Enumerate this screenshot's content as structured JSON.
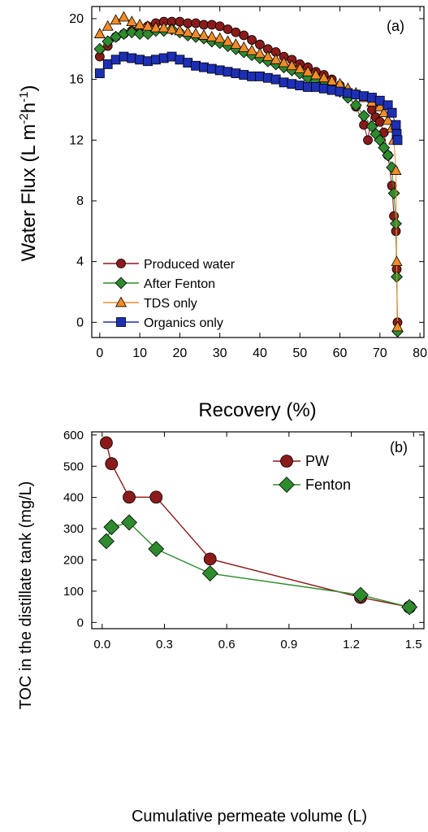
{
  "chart_data": [
    {
      "type": "scatter",
      "panel_label": "(a)",
      "xlabel": "Recovery (%)",
      "ylabel": "Water Flux (L m-2h-1)",
      "xlim": [
        -2,
        81
      ],
      "ylim": [
        -1,
        20.8
      ],
      "xticks": [
        0,
        10,
        20,
        30,
        40,
        50,
        60,
        70,
        80
      ],
      "yticks": [
        0,
        4,
        8,
        12,
        16,
        20
      ],
      "legend_position": "bottom-left",
      "series": [
        {
          "name": "Produced water",
          "marker": "circle",
          "color": "#8b1a1a",
          "line": "#8b1a1a",
          "x": [
            0,
            2,
            4,
            6,
            8,
            10,
            12,
            14,
            16,
            18,
            20,
            22,
            24,
            26,
            28,
            30,
            32,
            34,
            36,
            38,
            40,
            42,
            44,
            46,
            48,
            50,
            52,
            54,
            56,
            58,
            60,
            62,
            64,
            66,
            67,
            68,
            69,
            70,
            71,
            72,
            73,
            73.5,
            74,
            74.2,
            74.4
          ],
          "y": [
            17.5,
            18.2,
            18.8,
            19.0,
            19.2,
            19.4,
            19.5,
            19.7,
            19.8,
            19.8,
            19.8,
            19.7,
            19.7,
            19.6,
            19.6,
            19.5,
            19.3,
            19.1,
            18.9,
            18.6,
            18.3,
            18.0,
            17.8,
            17.5,
            17.3,
            17.0,
            16.8,
            16.5,
            16.3,
            16.0,
            15.6,
            15.0,
            14.2,
            13.0,
            12.0,
            14.0,
            13.5,
            13.2,
            12.5,
            11.0,
            9.0,
            7.0,
            6.0,
            3.5,
            0.0
          ]
        },
        {
          "name": "After Fenton",
          "marker": "diamond",
          "color": "#2e8b2e",
          "line": "#2e8b2e",
          "x": [
            0,
            2,
            4,
            6,
            8,
            10,
            12,
            14,
            16,
            18,
            20,
            22,
            24,
            26,
            28,
            30,
            32,
            34,
            36,
            38,
            40,
            42,
            44,
            46,
            48,
            50,
            52,
            54,
            56,
            58,
            60,
            62,
            64,
            66,
            68,
            69,
            70,
            71,
            72,
            73,
            73.5,
            74,
            74.2,
            74.4
          ],
          "y": [
            18.0,
            18.5,
            18.8,
            19.0,
            19.1,
            19.0,
            19.0,
            19.2,
            19.2,
            19.3,
            19.1,
            18.9,
            18.8,
            18.7,
            18.5,
            18.4,
            18.2,
            18.0,
            17.8,
            17.6,
            17.4,
            17.2,
            17.0,
            16.8,
            16.6,
            16.4,
            16.1,
            15.9,
            15.7,
            15.5,
            15.2,
            14.8,
            14.3,
            13.6,
            12.9,
            12.4,
            12.0,
            11.5,
            11.0,
            10.2,
            8.5,
            6.5,
            3.0,
            -0.6
          ]
        },
        {
          "name": "TDS only",
          "marker": "triangle",
          "color": "#f28c28",
          "line": "#f28c28",
          "x": [
            0,
            2,
            4,
            6,
            8,
            10,
            12,
            14,
            16,
            18,
            20,
            22,
            24,
            26,
            28,
            30,
            32,
            34,
            36,
            38,
            40,
            42,
            44,
            46,
            48,
            50,
            52,
            54,
            56,
            58,
            60,
            62,
            64,
            66,
            68,
            70,
            71,
            72,
            73,
            73.5,
            74,
            74.2,
            74.4
          ],
          "y": [
            19.0,
            19.5,
            19.9,
            20.1,
            19.8,
            19.6,
            19.5,
            19.4,
            19.4,
            19.3,
            19.2,
            19.1,
            19.0,
            18.9,
            18.8,
            18.7,
            18.5,
            18.3,
            18.1,
            17.9,
            17.7,
            17.5,
            17.3,
            17.1,
            16.9,
            16.7,
            16.5,
            16.3,
            16.1,
            15.9,
            15.7,
            15.4,
            15.1,
            14.8,
            14.5,
            14.2,
            13.8,
            13.3,
            12.8,
            12.0,
            10.0,
            4.0,
            -0.3
          ]
        },
        {
          "name": "Organics only",
          "marker": "square",
          "color": "#1c2fb5",
          "line": "#1c2fb5",
          "x": [
            0,
            2,
            4,
            6,
            8,
            10,
            12,
            14,
            16,
            18,
            20,
            22,
            24,
            26,
            28,
            30,
            32,
            34,
            36,
            38,
            40,
            42,
            44,
            46,
            48,
            50,
            52,
            54,
            56,
            58,
            60,
            62,
            64,
            66,
            68,
            70,
            72,
            73,
            74,
            74.2,
            74.4
          ],
          "y": [
            16.4,
            17.0,
            17.3,
            17.5,
            17.4,
            17.3,
            17.2,
            17.3,
            17.4,
            17.5,
            17.3,
            17.1,
            16.9,
            16.8,
            16.7,
            16.6,
            16.5,
            16.4,
            16.3,
            16.2,
            16.2,
            16.1,
            16.0,
            15.8,
            15.7,
            15.6,
            15.5,
            15.5,
            15.4,
            15.3,
            15.2,
            15.1,
            15.0,
            14.9,
            14.8,
            14.6,
            14.3,
            13.8,
            13.0,
            12.4,
            12.0
          ]
        }
      ]
    },
    {
      "type": "line",
      "panel_label": "(b)",
      "xlabel": "Cumulative permeate volume (L)",
      "ylabel": "TOC in the distillate tank (mg/L)",
      "xlim": [
        -0.05,
        1.55
      ],
      "ylim": [
        -20,
        610
      ],
      "xticks": [
        0.0,
        0.3,
        0.6,
        0.9,
        1.2,
        1.5
      ],
      "xtick_labels": [
        "0.0",
        "0.3",
        "0.6",
        "0.9",
        "1.2",
        "1.5"
      ],
      "yticks": [
        0,
        100,
        200,
        300,
        400,
        500,
        600
      ],
      "legend_position": "top-right",
      "series": [
        {
          "name": "PW",
          "marker": "circle",
          "color": "#8b1a1a",
          "line": "#8b1a1a",
          "x": [
            0.02,
            0.045,
            0.13,
            0.26,
            0.52,
            1.245,
            1.48
          ],
          "y": [
            575,
            508,
            401,
            401,
            203,
            80,
            49
          ]
        },
        {
          "name": "Fenton",
          "marker": "diamond",
          "color": "#2e8b2e",
          "line": "#2e8b2e",
          "x": [
            0.02,
            0.045,
            0.13,
            0.26,
            0.52,
            1.245,
            1.48
          ],
          "y": [
            260,
            305,
            320,
            235,
            157,
            88,
            49
          ]
        }
      ]
    }
  ]
}
